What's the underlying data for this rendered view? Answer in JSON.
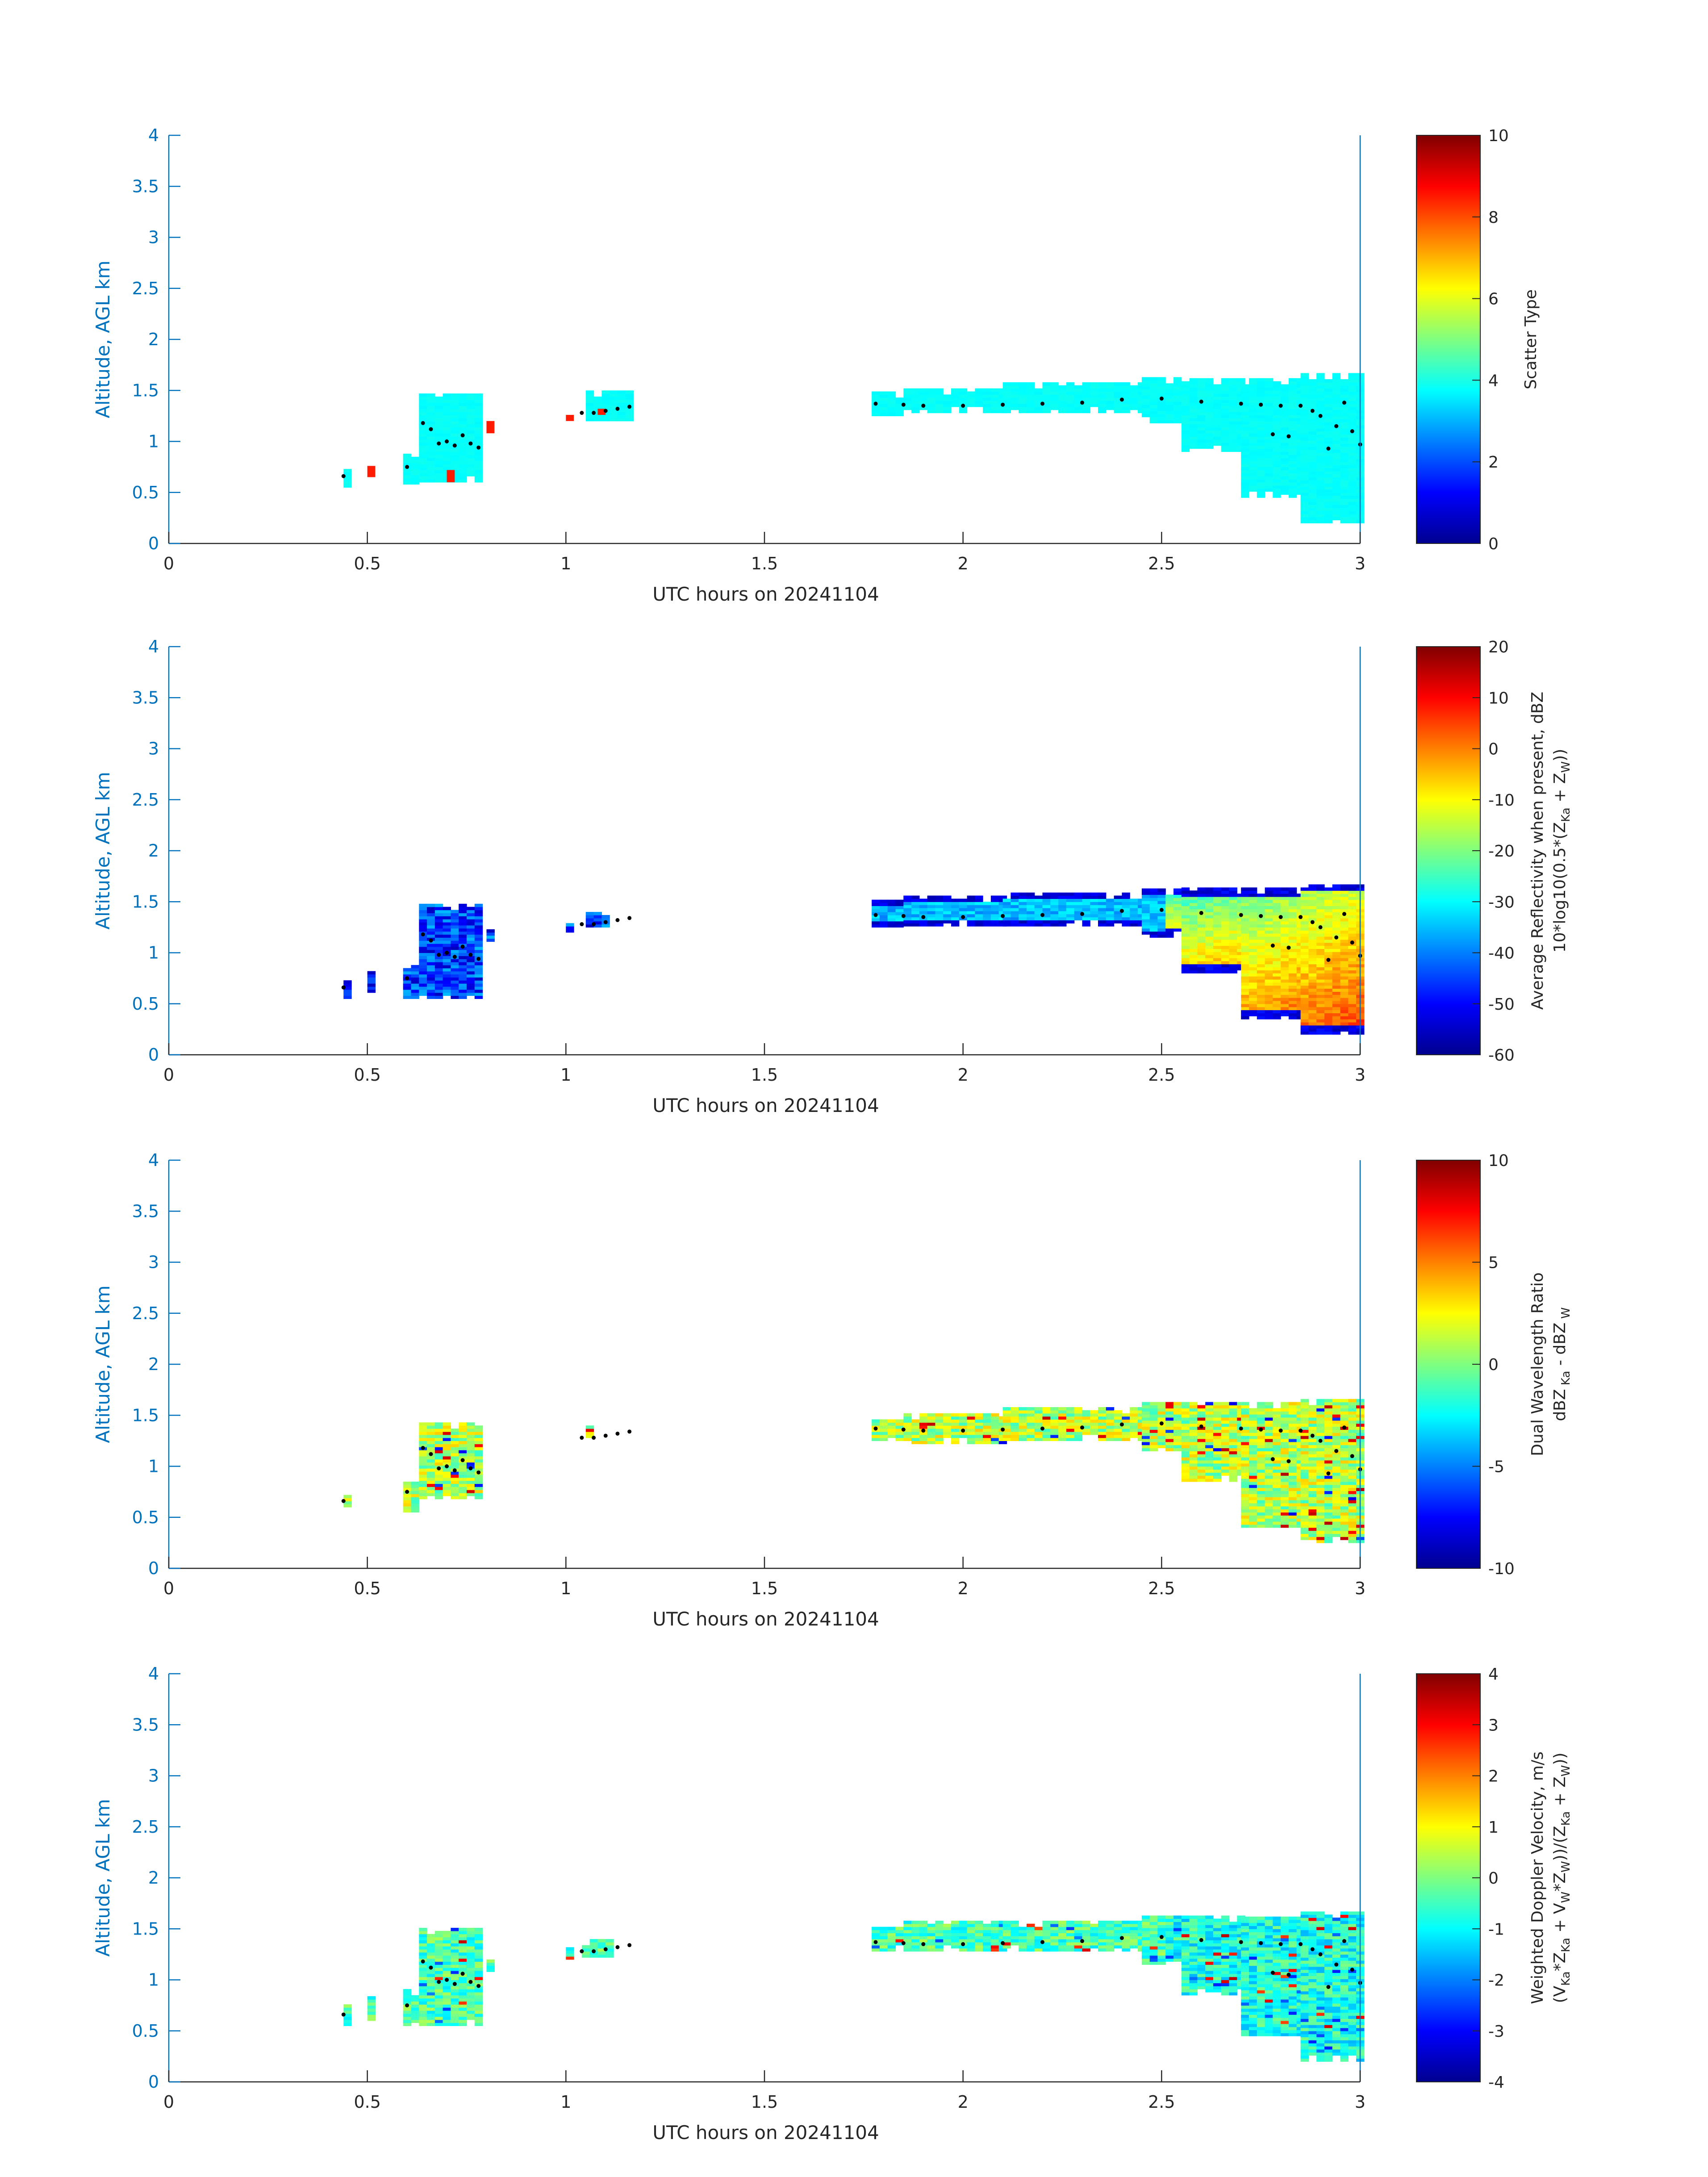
{
  "chart_data": [
    {
      "type": "heatmap",
      "xlabel": "UTC hours on 20241104",
      "ylabel": "Altitude, AGL km",
      "xlim": [
        0,
        3
      ],
      "ylim": [
        0,
        4
      ],
      "xticks": [
        "0",
        "0.5",
        "1",
        "1.5",
        "2",
        "2.5",
        "3"
      ],
      "yticks": [
        "0",
        "0.5",
        "1",
        "1.5",
        "2",
        "2.5",
        "3",
        "3.5",
        "4"
      ],
      "colorbar": {
        "label_lines": [
          "Scatter Type"
        ],
        "range": [
          0,
          10
        ],
        "ticks": [
          "0",
          "2",
          "4",
          "6",
          "8",
          "10"
        ]
      },
      "segments": [
        {
          "x": [
            0.44,
            0.46
          ],
          "bottom": 0.55,
          "top": 0.72
        },
        {
          "x": [
            0.59,
            0.63
          ],
          "bottom": 0.58,
          "top": 0.88
        },
        {
          "x": [
            0.63,
            0.79
          ],
          "bottom": 0.6,
          "top": 1.45
        },
        {
          "x": [
            1.05,
            1.17
          ],
          "bottom": 1.2,
          "top": 1.5
        },
        {
          "x": [
            1.77,
            1.85
          ],
          "bottom": 1.25,
          "top": 1.48
        },
        {
          "x": [
            1.85,
            2.1
          ],
          "bottom": 1.28,
          "top": 1.5
        },
        {
          "x": [
            2.1,
            2.45
          ],
          "bottom": 1.28,
          "top": 1.56
        },
        {
          "x": [
            2.45,
            2.55
          ],
          "bottom": 1.18,
          "top": 1.62
        },
        {
          "x": [
            2.55,
            2.7
          ],
          "bottom": 0.9,
          "top": 1.62
        },
        {
          "x": [
            2.7,
            2.85
          ],
          "bottom": 0.45,
          "top": 1.62
        },
        {
          "x": [
            2.85,
            3.01
          ],
          "bottom": 0.2,
          "top": 1.66
        }
      ],
      "patches": [
        {
          "x": [
            0.5,
            0.52
          ],
          "bottom": 0.65,
          "top": 0.76,
          "value": 8.5
        },
        {
          "x": [
            0.7,
            0.72
          ],
          "bottom": 0.6,
          "top": 0.72,
          "value": 8.5
        },
        {
          "x": [
            0.8,
            0.82
          ],
          "bottom": 1.08,
          "top": 1.2,
          "value": 8.5
        },
        {
          "x": [
            1.0,
            1.02
          ],
          "bottom": 1.2,
          "top": 1.26,
          "value": 8.5
        },
        {
          "x": [
            1.08,
            1.1
          ],
          "bottom": 1.26,
          "top": 1.32,
          "value": 8.5
        }
      ],
      "markers_km": [
        [
          0.44,
          0.66
        ],
        [
          0.6,
          0.75
        ],
        [
          0.64,
          1.18
        ],
        [
          0.66,
          1.12
        ],
        [
          0.68,
          0.98
        ],
        [
          0.7,
          1.0
        ],
        [
          0.72,
          0.96
        ],
        [
          0.74,
          1.06
        ],
        [
          0.76,
          0.98
        ],
        [
          0.78,
          0.94
        ],
        [
          1.04,
          1.28
        ],
        [
          1.07,
          1.28
        ],
        [
          1.1,
          1.3
        ],
        [
          1.13,
          1.32
        ],
        [
          1.16,
          1.34
        ],
        [
          1.78,
          1.37
        ],
        [
          1.85,
          1.36
        ],
        [
          1.9,
          1.35
        ],
        [
          2.0,
          1.35
        ],
        [
          2.1,
          1.36
        ],
        [
          2.2,
          1.37
        ],
        [
          2.3,
          1.38
        ],
        [
          2.4,
          1.41
        ],
        [
          2.5,
          1.42
        ],
        [
          2.6,
          1.39
        ],
        [
          2.7,
          1.37
        ],
        [
          2.75,
          1.36
        ],
        [
          2.78,
          1.07
        ],
        [
          2.8,
          1.35
        ],
        [
          2.82,
          1.05
        ],
        [
          2.85,
          1.35
        ],
        [
          2.88,
          1.3
        ],
        [
          2.9,
          1.25
        ],
        [
          2.92,
          0.93
        ],
        [
          2.94,
          1.15
        ],
        [
          2.96,
          1.38
        ],
        [
          2.98,
          1.1
        ],
        [
          3.0,
          0.97
        ]
      ]
    },
    {
      "type": "heatmap",
      "xlabel": "UTC hours on 20241104",
      "ylabel": "Altitude, AGL km",
      "xlim": [
        0,
        3
      ],
      "ylim": [
        0,
        4
      ],
      "xticks": [
        "0",
        "0.5",
        "1",
        "1.5",
        "2",
        "2.5",
        "3"
      ],
      "yticks": [
        "0",
        "0.5",
        "1",
        "1.5",
        "2",
        "2.5",
        "3",
        "3.5",
        "4"
      ],
      "colorbar": {
        "label_lines": [
          "Average Reflectivity when present, dBZ",
          "10*log10(0.5*(Z Ka + Z W))"
        ],
        "range": [
          -60,
          20
        ],
        "ticks": [
          "-60",
          "-50",
          "-40",
          "-30",
          "-20",
          "-10",
          "0",
          "10",
          "20"
        ]
      },
      "segments": [
        {
          "x": [
            0.44,
            0.46
          ],
          "bottom": 0.55,
          "top": 0.78
        },
        {
          "x": [
            0.5,
            0.52
          ],
          "bottom": 0.58,
          "top": 0.82
        },
        {
          "x": [
            0.59,
            0.63
          ],
          "bottom": 0.55,
          "top": 0.88
        },
        {
          "x": [
            0.63,
            0.79
          ],
          "bottom": 0.55,
          "top": 1.48
        },
        {
          "x": [
            0.8,
            0.82
          ],
          "bottom": 1.08,
          "top": 1.25
        },
        {
          "x": [
            1.0,
            1.02
          ],
          "bottom": 1.2,
          "top": 1.3
        },
        {
          "x": [
            1.05,
            1.11
          ],
          "bottom": 1.25,
          "top": 1.38
        },
        {
          "x": [
            1.77,
            1.85
          ],
          "bottom": 1.25,
          "top": 1.5
        },
        {
          "x": [
            1.85,
            2.1
          ],
          "bottom": 1.26,
          "top": 1.54
        },
        {
          "x": [
            2.1,
            2.45
          ],
          "bottom": 1.26,
          "top": 1.58
        },
        {
          "x": [
            2.45,
            2.55
          ],
          "bottom": 1.15,
          "top": 1.62
        },
        {
          "x": [
            2.55,
            2.7
          ],
          "bottom": 0.8,
          "top": 1.62
        },
        {
          "x": [
            2.7,
            2.85
          ],
          "bottom": 0.35,
          "top": 1.62
        },
        {
          "x": [
            2.85,
            3.01
          ],
          "bottom": 0.2,
          "top": 1.66
        }
      ],
      "markers_km": [
        [
          0.44,
          0.66
        ],
        [
          0.6,
          0.75
        ],
        [
          0.64,
          1.18
        ],
        [
          0.66,
          1.12
        ],
        [
          0.68,
          0.98
        ],
        [
          0.7,
          1.0
        ],
        [
          0.72,
          0.96
        ],
        [
          0.74,
          1.06
        ],
        [
          0.76,
          0.98
        ],
        [
          0.78,
          0.94
        ],
        [
          1.04,
          1.28
        ],
        [
          1.07,
          1.28
        ],
        [
          1.1,
          1.3
        ],
        [
          1.13,
          1.32
        ],
        [
          1.16,
          1.34
        ],
        [
          1.78,
          1.37
        ],
        [
          1.85,
          1.36
        ],
        [
          1.9,
          1.35
        ],
        [
          2.0,
          1.35
        ],
        [
          2.1,
          1.36
        ],
        [
          2.2,
          1.37
        ],
        [
          2.3,
          1.38
        ],
        [
          2.4,
          1.41
        ],
        [
          2.5,
          1.42
        ],
        [
          2.6,
          1.39
        ],
        [
          2.7,
          1.37
        ],
        [
          2.75,
          1.36
        ],
        [
          2.78,
          1.07
        ],
        [
          2.8,
          1.35
        ],
        [
          2.82,
          1.05
        ],
        [
          2.85,
          1.35
        ],
        [
          2.88,
          1.3
        ],
        [
          2.9,
          1.25
        ],
        [
          2.92,
          0.93
        ],
        [
          2.94,
          1.15
        ],
        [
          2.96,
          1.38
        ],
        [
          2.98,
          1.1
        ],
        [
          3.0,
          0.97
        ]
      ]
    },
    {
      "type": "heatmap",
      "xlabel": "UTC hours on 20241104",
      "ylabel": "Altitude, AGL km",
      "xlim": [
        0,
        3
      ],
      "ylim": [
        0,
        4
      ],
      "xticks": [
        "0",
        "0.5",
        "1",
        "1.5",
        "2",
        "2.5",
        "3"
      ],
      "yticks": [
        "0",
        "0.5",
        "1",
        "1.5",
        "2",
        "2.5",
        "3",
        "3.5",
        "4"
      ],
      "colorbar": {
        "label_lines": [
          "Dual Wavelength Ratio",
          "dBZ Ka - dBZ W"
        ],
        "range": [
          -10,
          10
        ],
        "ticks": [
          "-10",
          "-5",
          "0",
          "5",
          "10"
        ]
      },
      "segments": [
        {
          "x": [
            0.44,
            0.46
          ],
          "bottom": 0.6,
          "top": 0.7
        },
        {
          "x": [
            0.59,
            0.63
          ],
          "bottom": 0.55,
          "top": 0.85
        },
        {
          "x": [
            0.63,
            0.79
          ],
          "bottom": 0.68,
          "top": 1.42
        },
        {
          "x": [
            1.05,
            1.07
          ],
          "bottom": 1.28,
          "top": 1.38
        },
        {
          "x": [
            1.77,
            1.85
          ],
          "bottom": 1.25,
          "top": 1.46
        },
        {
          "x": [
            1.85,
            2.1
          ],
          "bottom": 1.22,
          "top": 1.52
        },
        {
          "x": [
            2.1,
            2.45
          ],
          "bottom": 1.25,
          "top": 1.58
        },
        {
          "x": [
            2.45,
            2.55
          ],
          "bottom": 1.15,
          "top": 1.62
        },
        {
          "x": [
            2.55,
            2.7
          ],
          "bottom": 0.85,
          "top": 1.62
        },
        {
          "x": [
            2.7,
            2.85
          ],
          "bottom": 0.4,
          "top": 1.62
        },
        {
          "x": [
            2.85,
            3.01
          ],
          "bottom": 0.25,
          "top": 1.64
        }
      ],
      "markers_km": [
        [
          0.44,
          0.66
        ],
        [
          0.6,
          0.75
        ],
        [
          0.64,
          1.18
        ],
        [
          0.66,
          1.12
        ],
        [
          0.68,
          0.98
        ],
        [
          0.7,
          1.0
        ],
        [
          0.72,
          0.96
        ],
        [
          0.74,
          1.06
        ],
        [
          0.76,
          0.98
        ],
        [
          0.78,
          0.94
        ],
        [
          1.04,
          1.28
        ],
        [
          1.07,
          1.28
        ],
        [
          1.1,
          1.3
        ],
        [
          1.13,
          1.32
        ],
        [
          1.16,
          1.34
        ],
        [
          1.78,
          1.37
        ],
        [
          1.85,
          1.36
        ],
        [
          1.9,
          1.35
        ],
        [
          2.0,
          1.35
        ],
        [
          2.1,
          1.36
        ],
        [
          2.2,
          1.37
        ],
        [
          2.3,
          1.38
        ],
        [
          2.4,
          1.41
        ],
        [
          2.5,
          1.42
        ],
        [
          2.6,
          1.39
        ],
        [
          2.7,
          1.37
        ],
        [
          2.75,
          1.36
        ],
        [
          2.78,
          1.07
        ],
        [
          2.8,
          1.35
        ],
        [
          2.82,
          1.05
        ],
        [
          2.85,
          1.35
        ],
        [
          2.88,
          1.3
        ],
        [
          2.9,
          1.25
        ],
        [
          2.92,
          0.93
        ],
        [
          2.94,
          1.15
        ],
        [
          2.96,
          1.38
        ],
        [
          2.98,
          1.1
        ],
        [
          3.0,
          0.97
        ]
      ]
    },
    {
      "type": "heatmap",
      "xlabel": "UTC hours on 20241104",
      "ylabel": "Altitude, AGL km",
      "xlim": [
        0,
        3
      ],
      "ylim": [
        0,
        4
      ],
      "xticks": [
        "0",
        "0.5",
        "1",
        "1.5",
        "2",
        "2.5",
        "3"
      ],
      "yticks": [
        "0",
        "0.5",
        "1",
        "1.5",
        "2",
        "2.5",
        "3",
        "3.5",
        "4"
      ],
      "colorbar": {
        "label_lines": [
          "Weighted Doppler Velocity, m/s",
          "(V Ka *Z Ka + V W *Z W ))/(Z Ka + Z W ))"
        ],
        "range": [
          -4,
          4
        ],
        "ticks": [
          "-4",
          "-3",
          "-2",
          "-1",
          "0",
          "1",
          "2",
          "3",
          "4"
        ]
      },
      "segments": [
        {
          "x": [
            0.44,
            0.46
          ],
          "bottom": 0.55,
          "top": 0.75
        },
        {
          "x": [
            0.5,
            0.52
          ],
          "bottom": 0.6,
          "top": 0.82
        },
        {
          "x": [
            0.59,
            0.63
          ],
          "bottom": 0.55,
          "top": 0.9
        },
        {
          "x": [
            0.63,
            0.79
          ],
          "bottom": 0.55,
          "top": 1.5
        },
        {
          "x": [
            0.8,
            0.82
          ],
          "bottom": 1.08,
          "top": 1.26
        },
        {
          "x": [
            1.0,
            1.02
          ],
          "bottom": 1.2,
          "top": 1.3
        },
        {
          "x": [
            1.04,
            1.12
          ],
          "bottom": 1.22,
          "top": 1.38
        },
        {
          "x": [
            1.77,
            1.85
          ],
          "bottom": 1.28,
          "top": 1.5
        },
        {
          "x": [
            1.85,
            2.1
          ],
          "bottom": 1.28,
          "top": 1.58
        },
        {
          "x": [
            2.1,
            2.45
          ],
          "bottom": 1.28,
          "top": 1.58
        },
        {
          "x": [
            2.45,
            2.55
          ],
          "bottom": 1.15,
          "top": 1.62
        },
        {
          "x": [
            2.55,
            2.7
          ],
          "bottom": 0.85,
          "top": 1.62
        },
        {
          "x": [
            2.7,
            2.85
          ],
          "bottom": 0.45,
          "top": 1.62
        },
        {
          "x": [
            2.85,
            3.01
          ],
          "bottom": 0.2,
          "top": 1.66
        }
      ],
      "markers_km": [
        [
          0.44,
          0.66
        ],
        [
          0.6,
          0.75
        ],
        [
          0.64,
          1.18
        ],
        [
          0.66,
          1.12
        ],
        [
          0.68,
          0.98
        ],
        [
          0.7,
          1.0
        ],
        [
          0.72,
          0.96
        ],
        [
          0.74,
          1.06
        ],
        [
          0.76,
          0.98
        ],
        [
          0.78,
          0.94
        ],
        [
          1.04,
          1.28
        ],
        [
          1.07,
          1.28
        ],
        [
          1.1,
          1.3
        ],
        [
          1.13,
          1.32
        ],
        [
          1.16,
          1.34
        ],
        [
          1.78,
          1.37
        ],
        [
          1.85,
          1.36
        ],
        [
          1.9,
          1.35
        ],
        [
          2.0,
          1.35
        ],
        [
          2.1,
          1.36
        ],
        [
          2.2,
          1.37
        ],
        [
          2.3,
          1.38
        ],
        [
          2.4,
          1.41
        ],
        [
          2.5,
          1.42
        ],
        [
          2.6,
          1.39
        ],
        [
          2.7,
          1.37
        ],
        [
          2.75,
          1.36
        ],
        [
          2.78,
          1.07
        ],
        [
          2.8,
          1.35
        ],
        [
          2.82,
          1.05
        ],
        [
          2.85,
          1.35
        ],
        [
          2.88,
          1.3
        ],
        [
          2.9,
          1.25
        ],
        [
          2.92,
          0.93
        ],
        [
          2.94,
          1.15
        ],
        [
          2.96,
          1.38
        ],
        [
          2.98,
          1.1
        ],
        [
          3.0,
          0.97
        ]
      ]
    }
  ],
  "colors": {
    "axis": "#0072BD",
    "text": "#262626",
    "marker": "#000000"
  }
}
